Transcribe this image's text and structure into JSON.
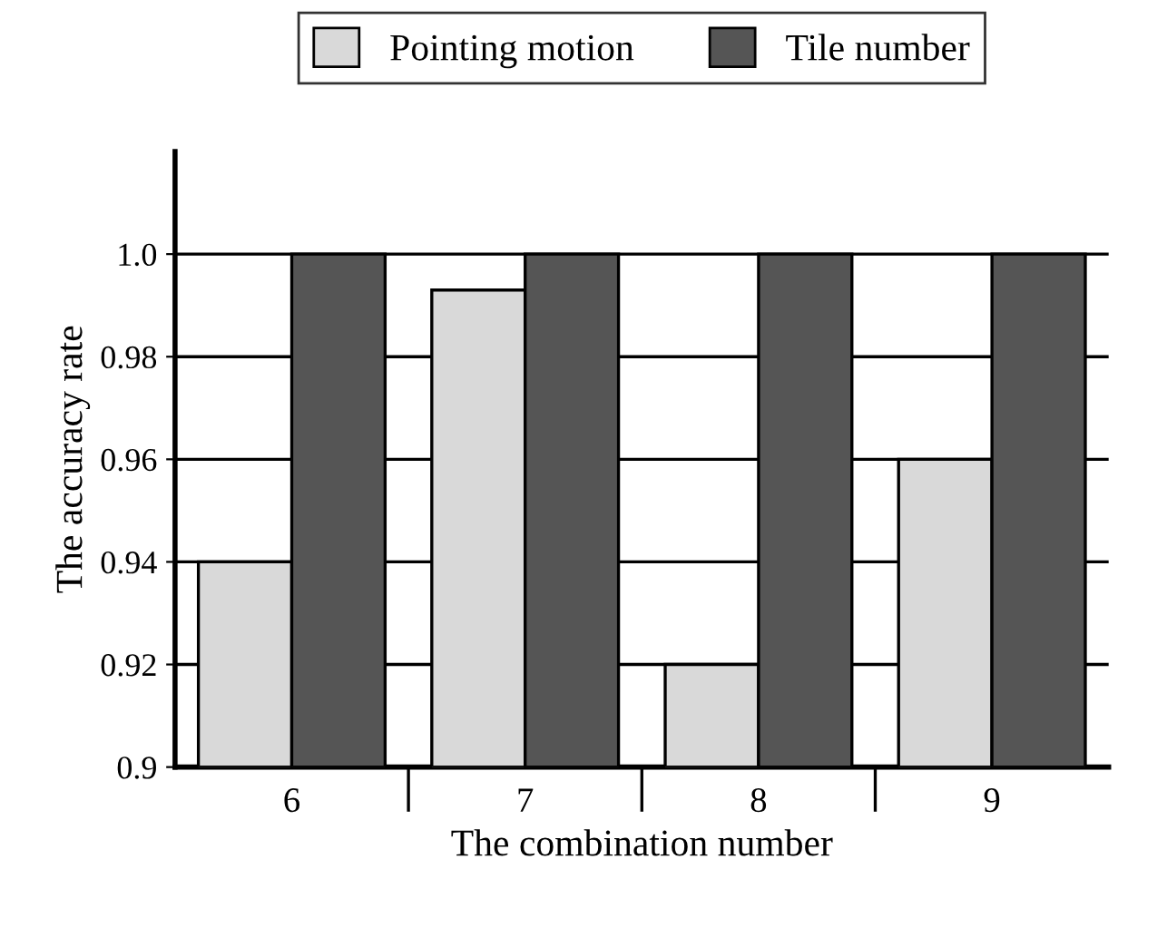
{
  "chart_data": {
    "type": "bar",
    "xlabel": "The combination number",
    "ylabel": "The accuracy rate",
    "categories": [
      "6",
      "7",
      "8",
      "9"
    ],
    "series": [
      {
        "name": "Pointing motion",
        "color": "#d9d9d9",
        "values": [
          0.94,
          0.993,
          0.92,
          0.96
        ]
      },
      {
        "name": "Tile number",
        "color": "#555555",
        "values": [
          1.0,
          1.0,
          1.0,
          1.0
        ]
      }
    ],
    "ylim": [
      0.9,
      1.02
    ],
    "yticks": [
      0.9,
      0.92,
      0.94,
      0.96,
      0.98,
      {
        "value": 1.0,
        "label": "1.0"
      }
    ],
    "grid": "y",
    "legend": "top"
  }
}
